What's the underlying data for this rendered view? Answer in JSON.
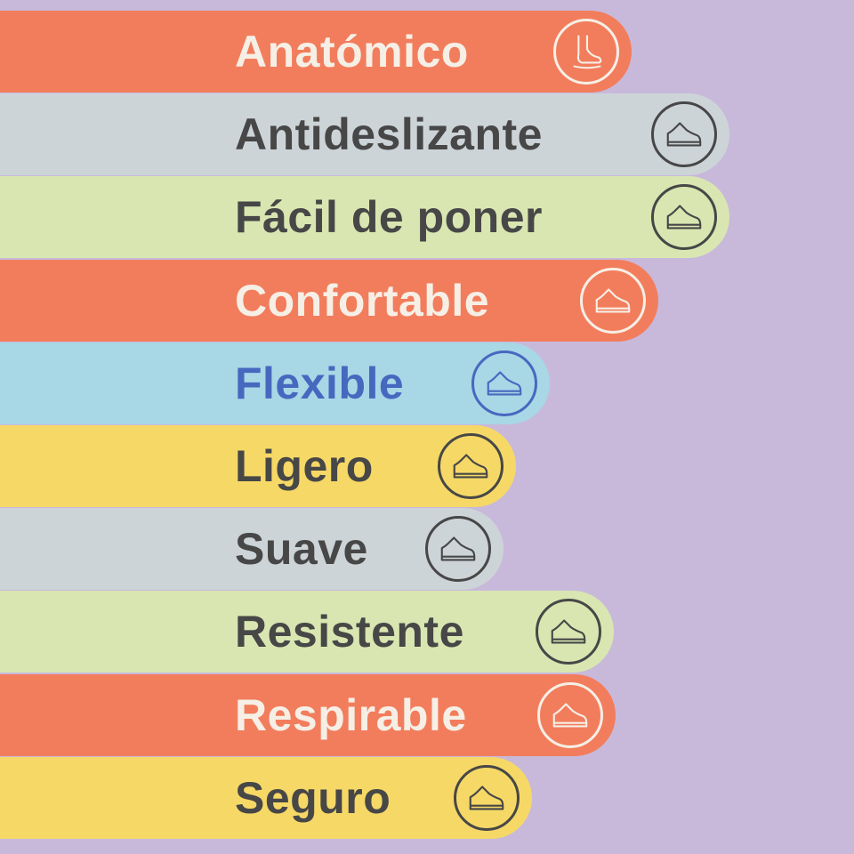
{
  "colors": {
    "background": "#c8b9db",
    "orange": "#f27d5c",
    "gray": "#cdd4d8",
    "green": "#d9e6b1",
    "blue": "#a8d7e6",
    "yellow": "#f6d866",
    "light_text": "#f6efe6",
    "dark_text": "#474747",
    "blue_text": "#4768bf"
  },
  "items": [
    {
      "label": "Anatómico",
      "icon": "foot-icon"
    },
    {
      "label": "Antideslizante",
      "icon": "shoe-slip-icon"
    },
    {
      "label": "Fácil de poner",
      "icon": "shoe-slip-on-icon"
    },
    {
      "label": "Confortable",
      "icon": "shoe-cloud-icon"
    },
    {
      "label": "Flexible",
      "icon": "shoe-flex-icon"
    },
    {
      "label": "Ligero",
      "icon": "shoe-light-icon"
    },
    {
      "label": "Suave",
      "icon": "shoe-soft-icon"
    },
    {
      "label": "Resistente",
      "icon": "shoe-shield-icon"
    },
    {
      "label": "Respirable",
      "icon": "shoe-breathable-icon"
    },
    {
      "label": "Seguro",
      "icon": "shoe-safe-icon"
    }
  ]
}
